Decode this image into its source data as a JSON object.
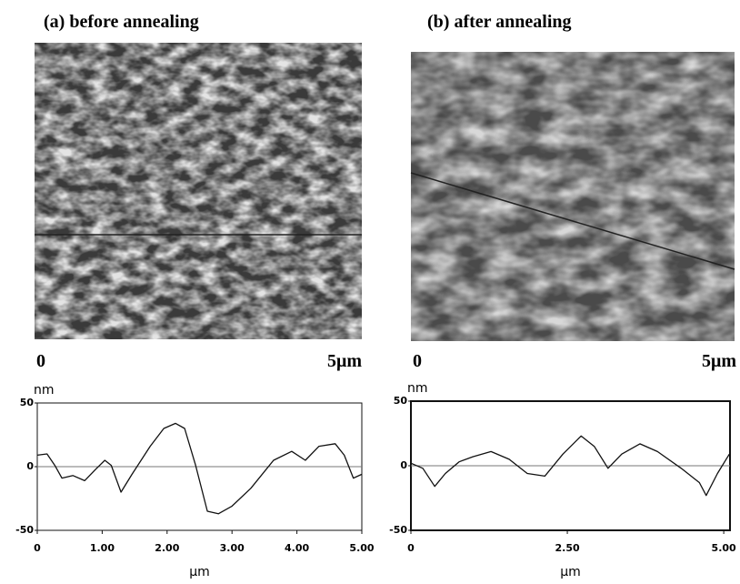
{
  "panels": [
    {
      "title": "(a) before annealing",
      "scale_start": "0",
      "scale_end": "5μm"
    },
    {
      "title": "(b) after annealing",
      "scale_start": "0",
      "scale_end": "5μm"
    }
  ],
  "chart_data": [
    {
      "type": "line",
      "ylabel": "nm",
      "xlabel": "μm",
      "x": [
        0,
        0.15,
        0.27,
        0.38,
        0.55,
        0.73,
        0.9,
        1.04,
        1.14,
        1.29,
        1.46,
        1.74,
        1.95,
        2.13,
        2.27,
        2.44,
        2.62,
        2.79,
        3.0,
        3.29,
        3.64,
        3.92,
        4.13,
        4.34,
        4.59,
        4.73,
        4.87,
        5.0
      ],
      "values": [
        9,
        10,
        1,
        -9,
        -7,
        -11,
        -2,
        5,
        1,
        -20,
        -6,
        16,
        30,
        34,
        30,
        1,
        -35,
        -37,
        -31,
        -17,
        5,
        12,
        5,
        16,
        18,
        9,
        -9,
        -6
      ],
      "color": "#111111",
      "xlim": [
        0,
        5
      ],
      "ylim": [
        -50,
        50
      ],
      "xticks": [
        0,
        {
          "value": 1,
          "label": "1.00"
        },
        {
          "value": 2,
          "label": "2.00"
        },
        {
          "value": 3,
          "label": "3.00"
        },
        {
          "value": 4,
          "label": "4.00"
        },
        {
          "value": 5,
          "label": "5.00"
        }
      ],
      "yticks": [
        50,
        0,
        -50
      ],
      "zero_line": true
    },
    {
      "type": "line",
      "ylabel": "nm",
      "xlabel": "μm",
      "x": [
        0,
        0.19,
        0.38,
        0.55,
        0.77,
        0.99,
        1.28,
        1.57,
        1.86,
        2.14,
        2.43,
        2.72,
        2.93,
        3.15,
        3.37,
        3.66,
        3.94,
        4.32,
        4.61,
        4.72,
        4.9,
        5.09
      ],
      "values": [
        2,
        -2,
        -16,
        -6,
        3,
        7,
        11,
        5,
        -6,
        -8,
        9,
        23,
        15,
        -2,
        9,
        17,
        11,
        -2,
        -13,
        -23,
        -6,
        9
      ],
      "color": "#111111",
      "xlim": [
        0,
        5.1
      ],
      "ylim": [
        -50,
        50
      ],
      "xticks": [
        0,
        {
          "value": 2.5,
          "label": "2.50"
        },
        {
          "value": 5,
          "label": "5.00"
        }
      ],
      "yticks": [
        50,
        0,
        -50
      ],
      "zero_line": true
    }
  ]
}
